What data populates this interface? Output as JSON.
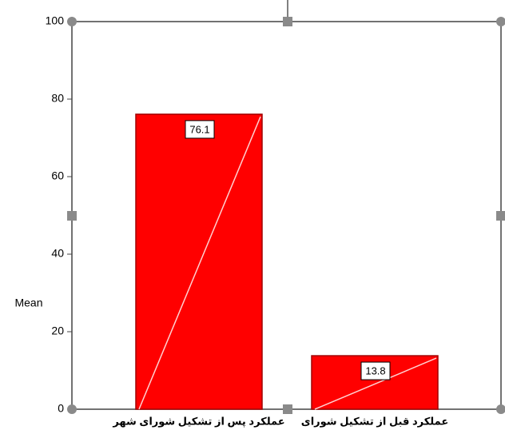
{
  "chart_data": {
    "type": "bar",
    "y_label": "Mean",
    "categories": [
      "عملکرد پس از تشکیل شورای شهر",
      "عملکرد قبل از تشکیل شورای"
    ],
    "values": [
      76.1,
      13.8
    ],
    "color": "#ff0000",
    "ylim": [
      0,
      100
    ],
    "yticks": [
      0,
      20,
      40,
      60,
      80,
      100
    ]
  }
}
